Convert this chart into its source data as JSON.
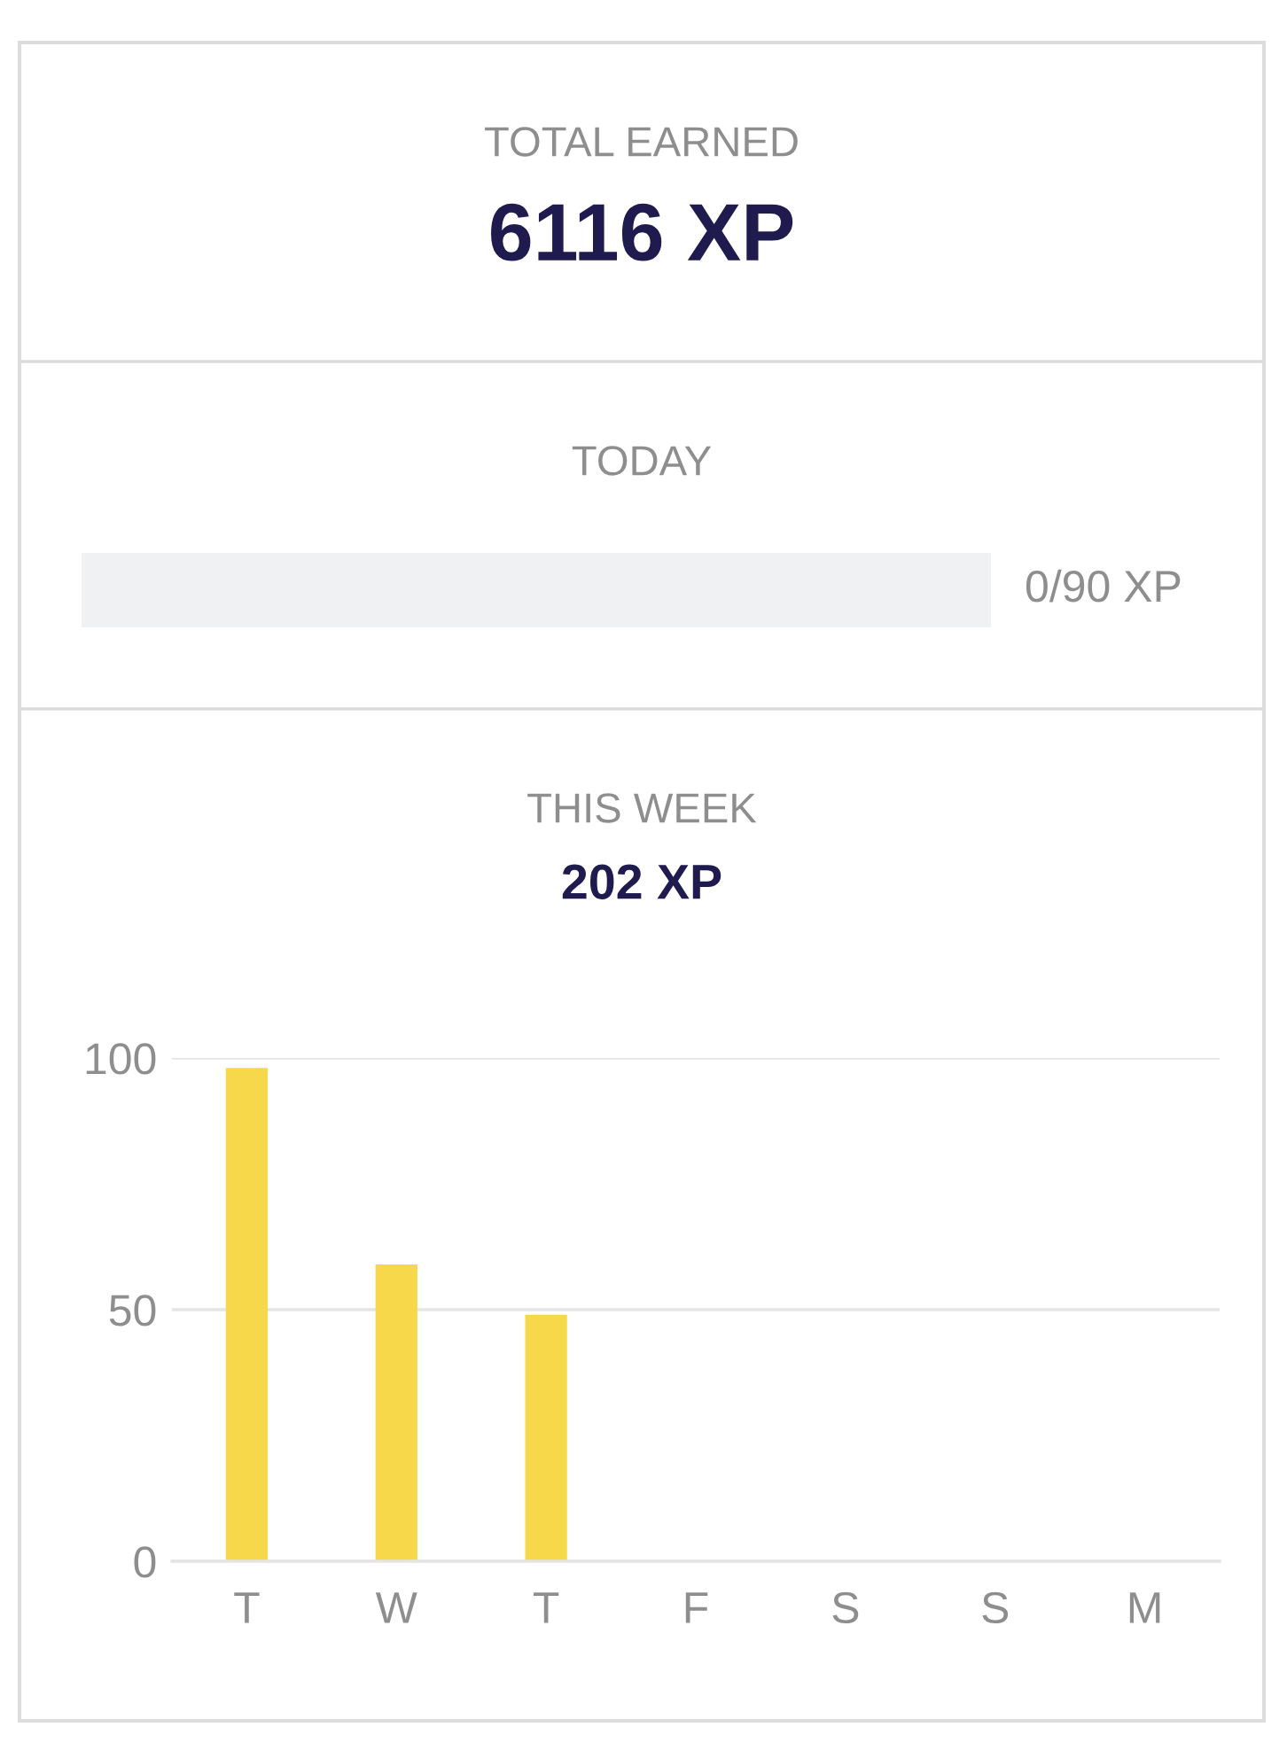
{
  "chart_data": [
    {
      "type": "other",
      "title": "TOTAL EARNED",
      "subtitle": "6116 XP"
    },
    {
      "type": "other",
      "title": "TODAY",
      "annotations": [
        "0/90 XP"
      ]
    },
    {
      "type": "bar",
      "title": "THIS WEEK",
      "subtitle": "202 XP",
      "categories": [
        "T",
        "W",
        "T",
        "F",
        "S",
        "S",
        "M"
      ],
      "values": [
        98,
        59,
        49,
        0,
        0,
        0,
        0
      ],
      "color": "#f8d84b",
      "ylim": [
        0,
        100
      ],
      "yticks": [
        0,
        50,
        100
      ],
      "grid": "y"
    }
  ]
}
